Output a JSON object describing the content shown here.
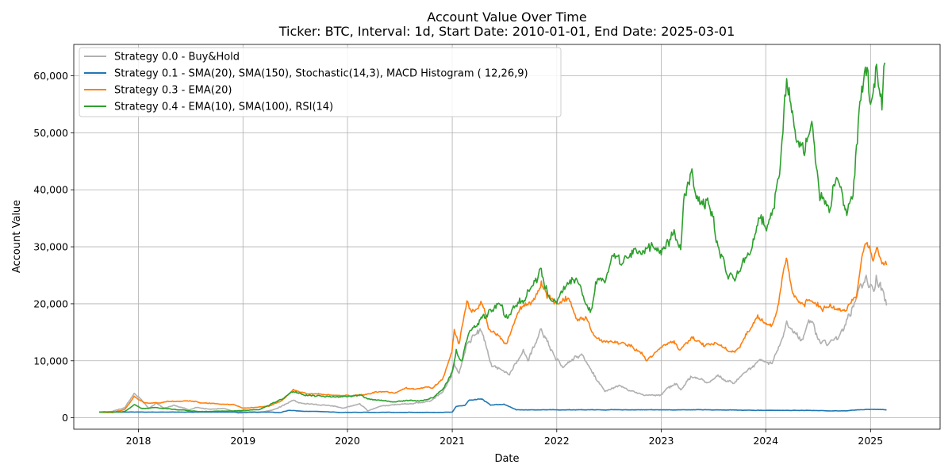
{
  "chart_data": {
    "type": "line",
    "title": "Account Value Over Time",
    "subtitle": "Ticker: BTC, Interval: 1d, Start Date: 2010-01-01, End Date: 2025-03-01",
    "xlabel": "Date",
    "ylabel": "Account Value",
    "xlim": [
      "2017-05-20",
      "2025-09-01"
    ],
    "ylim": [
      -2000,
      65500
    ],
    "x_ticks": [
      "2018-01-01",
      "2019-01-01",
      "2020-01-01",
      "2021-01-01",
      "2022-01-01",
      "2023-01-01",
      "2024-01-01",
      "2025-01-01"
    ],
    "x_tick_labels": [
      "2018",
      "2019",
      "2020",
      "2021",
      "2022",
      "2023",
      "2024",
      "2025"
    ],
    "y_ticks": [
      0,
      10000,
      20000,
      30000,
      40000,
      50000,
      60000
    ],
    "y_tick_labels": [
      "0",
      "10,000",
      "20,000",
      "30,000",
      "40,000",
      "50,000",
      "60,000"
    ],
    "grid": true,
    "legend_position": "top-left",
    "series": [
      {
        "name": "Strategy 0.0 - Buy&Hold",
        "color": "#b0b0b0",
        "points": [
          [
            "2017-08-17",
            1000
          ],
          [
            "2017-10-01",
            1100
          ],
          [
            "2017-11-15",
            1800
          ],
          [
            "2017-12-17",
            4300
          ],
          [
            "2018-01-15",
            2900
          ],
          [
            "2018-02-06",
            1600
          ],
          [
            "2018-03-05",
            2600
          ],
          [
            "2018-04-01",
            1650
          ],
          [
            "2018-05-05",
            2200
          ],
          [
            "2018-06-28",
            1400
          ],
          [
            "2018-07-25",
            1800
          ],
          [
            "2018-09-01",
            1550
          ],
          [
            "2018-11-01",
            1580
          ],
          [
            "2018-12-15",
            800
          ],
          [
            "2019-01-15",
            900
          ],
          [
            "2019-03-01",
            950
          ],
          [
            "2019-04-10",
            1300
          ],
          [
            "2019-05-15",
            2000
          ],
          [
            "2019-06-26",
            3100
          ],
          [
            "2019-07-15",
            2600
          ],
          [
            "2019-09-01",
            2400
          ],
          [
            "2019-10-25",
            2200
          ],
          [
            "2019-12-18",
            1700
          ],
          [
            "2020-02-13",
            2500
          ],
          [
            "2020-03-12",
            1200
          ],
          [
            "2020-05-01",
            2100
          ],
          [
            "2020-07-25",
            2400
          ],
          [
            "2020-09-05",
            2600
          ],
          [
            "2020-10-20",
            3000
          ],
          [
            "2020-11-30",
            4600
          ],
          [
            "2020-12-30",
            7500
          ],
          [
            "2021-01-08",
            9500
          ],
          [
            "2021-01-25",
            7800
          ],
          [
            "2021-02-21",
            13000
          ],
          [
            "2021-03-13",
            14500
          ],
          [
            "2021-04-14",
            15100
          ],
          [
            "2021-05-19",
            9000
          ],
          [
            "2021-06-20",
            8500
          ],
          [
            "2021-07-20",
            7500
          ],
          [
            "2021-09-06",
            12000
          ],
          [
            "2021-09-22",
            10000
          ],
          [
            "2021-11-08",
            15600
          ],
          [
            "2021-12-10",
            11800
          ],
          [
            "2022-01-22",
            8800
          ],
          [
            "2022-03-29",
            11200
          ],
          [
            "2022-05-12",
            7300
          ],
          [
            "2022-06-18",
            4600
          ],
          [
            "2022-08-13",
            5600
          ],
          [
            "2022-09-15",
            4700
          ],
          [
            "2022-11-09",
            4000
          ],
          [
            "2022-12-30",
            4000
          ],
          [
            "2023-01-25",
            5300
          ],
          [
            "2023-02-20",
            5800
          ],
          [
            "2023-03-10",
            4900
          ],
          [
            "2023-04-14",
            7300
          ],
          [
            "2023-06-15",
            6200
          ],
          [
            "2023-07-15",
            7300
          ],
          [
            "2023-09-11",
            6000
          ],
          [
            "2023-10-24",
            8000
          ],
          [
            "2023-12-06",
            10000
          ],
          [
            "2024-01-23",
            9500
          ],
          [
            "2024-02-15",
            12500
          ],
          [
            "2024-03-14",
            17000
          ],
          [
            "2024-05-01",
            13500
          ],
          [
            "2024-06-05",
            17000
          ],
          [
            "2024-07-05",
            13800
          ],
          [
            "2024-08-05",
            12800
          ],
          [
            "2024-09-06",
            13700
          ],
          [
            "2024-09-30",
            15500
          ],
          [
            "2024-11-12",
            21000
          ],
          [
            "2024-12-17",
            25000
          ],
          [
            "2025-01-10",
            22500
          ],
          [
            "2025-01-21",
            25000
          ],
          [
            "2025-02-10",
            22700
          ],
          [
            "2025-02-26",
            19700
          ]
        ]
      },
      {
        "name": "Strategy 0.1 - SMA(20), SMA(150), Stochastic(14,3), MACD Histogram ( 12,26,9)",
        "color": "#1f77b4",
        "points": [
          [
            "2017-08-17",
            1000
          ],
          [
            "2018-01-01",
            1000
          ],
          [
            "2018-06-01",
            1000
          ],
          [
            "2018-12-01",
            1000
          ],
          [
            "2019-04-01",
            1000
          ],
          [
            "2019-05-10",
            900
          ],
          [
            "2019-06-10",
            1300
          ],
          [
            "2019-08-01",
            1150
          ],
          [
            "2019-10-01",
            1100
          ],
          [
            "2019-12-01",
            950
          ],
          [
            "2020-06-01",
            950
          ],
          [
            "2020-12-01",
            950
          ],
          [
            "2021-01-01",
            1000
          ],
          [
            "2021-01-15",
            2000
          ],
          [
            "2021-02-15",
            2200
          ],
          [
            "2021-03-01",
            3100
          ],
          [
            "2021-04-15",
            3300
          ],
          [
            "2021-05-15",
            2200
          ],
          [
            "2021-07-01",
            2400
          ],
          [
            "2021-08-12",
            1400
          ],
          [
            "2021-12-31",
            1400
          ],
          [
            "2022-12-31",
            1400
          ],
          [
            "2023-06-15",
            1400
          ],
          [
            "2024-01-01",
            1300
          ],
          [
            "2024-06-15",
            1300
          ],
          [
            "2024-08-15",
            1200
          ],
          [
            "2024-10-15",
            1250
          ],
          [
            "2024-11-15",
            1400
          ],
          [
            "2025-01-15",
            1500
          ],
          [
            "2025-02-26",
            1400
          ]
        ]
      },
      {
        "name": "Strategy 0.3 - EMA(20)",
        "color": "#ff7f0e",
        "points": [
          [
            "2017-08-17",
            1000
          ],
          [
            "2017-10-01",
            900
          ],
          [
            "2017-11-15",
            1500
          ],
          [
            "2017-12-17",
            3800
          ],
          [
            "2018-01-20",
            2600
          ],
          [
            "2018-03-15",
            2600
          ],
          [
            "2018-04-15",
            2900
          ],
          [
            "2018-07-20",
            2900
          ],
          [
            "2018-08-20",
            2600
          ],
          [
            "2018-12-01",
            2300
          ],
          [
            "2019-01-01",
            1700
          ],
          [
            "2019-04-01",
            2000
          ],
          [
            "2019-05-15",
            3000
          ],
          [
            "2019-06-26",
            5000
          ],
          [
            "2019-07-20",
            4500
          ],
          [
            "2019-09-01",
            4200
          ],
          [
            "2019-10-25",
            4100
          ],
          [
            "2019-12-15",
            3900
          ],
          [
            "2020-02-15",
            4000
          ],
          [
            "2020-03-12",
            4200
          ],
          [
            "2020-05-01",
            4600
          ],
          [
            "2020-06-15",
            4300
          ],
          [
            "2020-07-25",
            5300
          ],
          [
            "2020-08-20",
            5000
          ],
          [
            "2020-09-30",
            5400
          ],
          [
            "2020-10-25",
            5200
          ],
          [
            "2020-12-01",
            7200
          ],
          [
            "2020-12-31",
            11500
          ],
          [
            "2021-01-08",
            15500
          ],
          [
            "2021-01-25",
            13000
          ],
          [
            "2021-02-21",
            20500
          ],
          [
            "2021-03-10",
            18500
          ],
          [
            "2021-04-14",
            20000
          ],
          [
            "2021-05-10",
            15500
          ],
          [
            "2021-06-10",
            14500
          ],
          [
            "2021-07-10",
            13000
          ],
          [
            "2021-08-15",
            18000
          ],
          [
            "2021-09-05",
            19500
          ],
          [
            "2021-10-10",
            20500
          ],
          [
            "2021-11-08",
            24000
          ],
          [
            "2021-11-25",
            22000
          ],
          [
            "2022-01-01",
            20000
          ],
          [
            "2022-02-10",
            21000
          ],
          [
            "2022-03-15",
            17000
          ],
          [
            "2022-04-15",
            17500
          ],
          [
            "2022-05-10",
            14500
          ],
          [
            "2022-06-15",
            13500
          ],
          [
            "2022-08-10",
            13000
          ],
          [
            "2022-09-15",
            12500
          ],
          [
            "2022-10-25",
            11500
          ],
          [
            "2022-11-10",
            10000
          ],
          [
            "2023-01-10",
            12800
          ],
          [
            "2023-02-15",
            13500
          ],
          [
            "2023-03-10",
            12000
          ],
          [
            "2023-04-15",
            14000
          ],
          [
            "2023-06-01",
            12500
          ],
          [
            "2023-07-15",
            13000
          ],
          [
            "2023-09-15",
            11500
          ],
          [
            "2023-10-20",
            14000
          ],
          [
            "2023-12-01",
            17500
          ],
          [
            "2024-01-20",
            16000
          ],
          [
            "2024-02-15",
            20000
          ],
          [
            "2024-03-13",
            28000
          ],
          [
            "2024-04-01",
            22500
          ],
          [
            "2024-05-01",
            20000
          ],
          [
            "2024-06-10",
            20500
          ],
          [
            "2024-07-15",
            19000
          ],
          [
            "2024-08-10",
            19500
          ],
          [
            "2024-10-01",
            19000
          ],
          [
            "2024-11-12",
            21000
          ],
          [
            "2024-12-01",
            28000
          ],
          [
            "2024-12-17",
            30500
          ],
          [
            "2025-01-10",
            27500
          ],
          [
            "2025-01-22",
            29800
          ],
          [
            "2025-02-10",
            27000
          ],
          [
            "2025-02-26",
            26800
          ]
        ]
      },
      {
        "name": "Strategy 0.4 - EMA(10), SMA(100), RSI(14)",
        "color": "#2ca02c",
        "points": [
          [
            "2017-08-17",
            1000
          ],
          [
            "2017-10-01",
            1000
          ],
          [
            "2017-11-15",
            1100
          ],
          [
            "2017-12-17",
            2300
          ],
          [
            "2018-01-15",
            1600
          ],
          [
            "2018-03-01",
            1800
          ],
          [
            "2018-05-01",
            1500
          ],
          [
            "2018-08-01",
            1100
          ],
          [
            "2018-12-01",
            1200
          ],
          [
            "2019-01-01",
            1300
          ],
          [
            "2019-03-01",
            1500
          ],
          [
            "2019-05-15",
            3200
          ],
          [
            "2019-06-26",
            4600
          ],
          [
            "2019-08-01",
            4000
          ],
          [
            "2019-10-01",
            3800
          ],
          [
            "2019-12-01",
            3600
          ],
          [
            "2020-02-15",
            4000
          ],
          [
            "2020-03-12",
            3300
          ],
          [
            "2020-05-01",
            3000
          ],
          [
            "2020-06-15",
            2800
          ],
          [
            "2020-08-01",
            3000
          ],
          [
            "2020-09-20",
            3000
          ],
          [
            "2020-10-25",
            3500
          ],
          [
            "2020-12-01",
            5200
          ],
          [
            "2020-12-31",
            8000
          ],
          [
            "2021-01-15",
            12000
          ],
          [
            "2021-02-01",
            10000
          ],
          [
            "2021-03-01",
            15000
          ],
          [
            "2021-04-15",
            17500
          ],
          [
            "2021-05-15",
            19000
          ],
          [
            "2021-06-15",
            20000
          ],
          [
            "2021-07-15",
            17500
          ],
          [
            "2021-08-15",
            19500
          ],
          [
            "2021-09-15",
            21000
          ],
          [
            "2021-10-20",
            24500
          ],
          [
            "2021-11-08",
            26200
          ],
          [
            "2021-12-01",
            21500
          ],
          [
            "2022-01-01",
            20000
          ],
          [
            "2022-02-01",
            23000
          ],
          [
            "2022-03-10",
            24500
          ],
          [
            "2022-04-01",
            21500
          ],
          [
            "2022-05-01",
            19000
          ],
          [
            "2022-05-20",
            23500
          ],
          [
            "2022-06-15",
            24000
          ],
          [
            "2022-07-15",
            28500
          ],
          [
            "2022-08-15",
            26800
          ],
          [
            "2022-09-15",
            28800
          ],
          [
            "2022-10-20",
            29000
          ],
          [
            "2022-11-25",
            30000
          ],
          [
            "2022-12-20",
            29800
          ],
          [
            "2023-01-10",
            30000
          ],
          [
            "2023-02-15",
            33000
          ],
          [
            "2023-03-10",
            29500
          ],
          [
            "2023-03-20",
            38000
          ],
          [
            "2023-04-15",
            43000
          ],
          [
            "2023-05-10",
            38000
          ],
          [
            "2023-06-15",
            37500
          ],
          [
            "2023-07-15",
            31000
          ],
          [
            "2023-08-20",
            25000
          ],
          [
            "2023-09-15",
            24000
          ],
          [
            "2023-10-15",
            28000
          ],
          [
            "2023-11-15",
            30000
          ],
          [
            "2023-12-10",
            35000
          ],
          [
            "2024-01-10",
            34000
          ],
          [
            "2024-01-25",
            36500
          ],
          [
            "2024-02-15",
            42000
          ],
          [
            "2024-03-01",
            50000
          ],
          [
            "2024-03-14",
            59500
          ],
          [
            "2024-04-15",
            49000
          ],
          [
            "2024-05-15",
            46000
          ],
          [
            "2024-06-10",
            52000
          ],
          [
            "2024-07-05",
            40000
          ],
          [
            "2024-07-25",
            37500
          ],
          [
            "2024-08-10",
            36000
          ],
          [
            "2024-09-01",
            41500
          ],
          [
            "2024-09-20",
            40500
          ],
          [
            "2024-10-10",
            35500
          ],
          [
            "2024-11-01",
            39000
          ],
          [
            "2024-11-22",
            54000
          ],
          [
            "2024-12-17",
            60000
          ],
          [
            "2025-01-01",
            55000
          ],
          [
            "2025-01-22",
            62000
          ],
          [
            "2025-02-10",
            54000
          ],
          [
            "2025-02-20",
            62300
          ]
        ]
      }
    ]
  }
}
